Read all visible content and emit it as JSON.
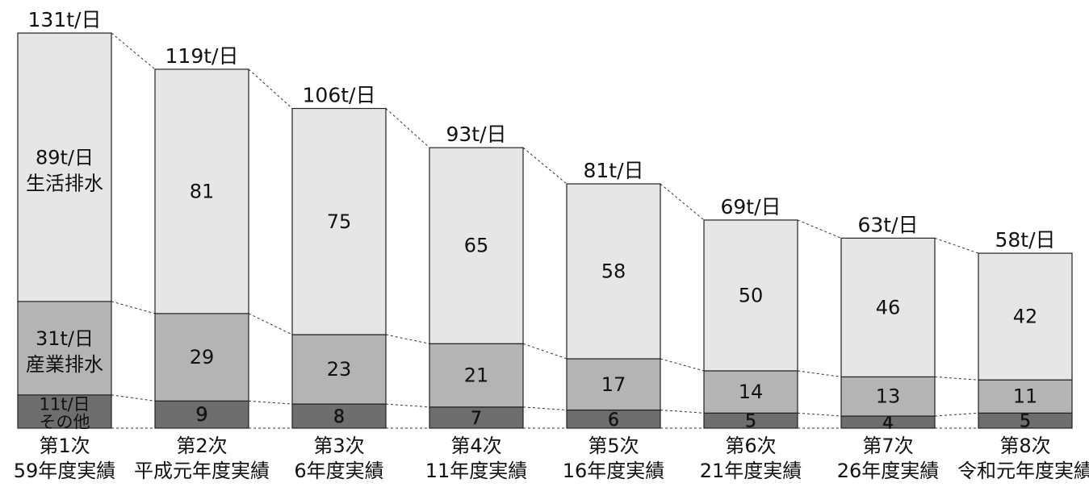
{
  "chart_data": {
    "type": "bar",
    "stacked": true,
    "categories": [
      "第1次",
      "第2次",
      "第3次",
      "第4次",
      "第5次",
      "第6次",
      "第7次",
      "第8次"
    ],
    "sublabels": [
      "59年度実績",
      "平成元年度実績",
      "6年度実績",
      "11年度実績",
      "16年度実績",
      "21年度実績",
      "26年度実績",
      "令和元年度実績"
    ],
    "totals": [
      131,
      119,
      106,
      93,
      81,
      69,
      63,
      58
    ],
    "total_labels": [
      "131t/日",
      "119t/日",
      "106t/日",
      "93t/日",
      "81t/日",
      "69t/日",
      "63t/日",
      "58t/日"
    ],
    "series": [
      {
        "name": "その他",
        "values": [
          11,
          9,
          8,
          7,
          6,
          5,
          4,
          5
        ],
        "labels": [
          "11t/日",
          "9",
          "8",
          "7",
          "6",
          "5",
          "4",
          "5"
        ],
        "color": "#6e6e6e"
      },
      {
        "name": "産業排水",
        "values": [
          31,
          29,
          23,
          21,
          17,
          14,
          13,
          11
        ],
        "labels": [
          "31t/日",
          "29",
          "23",
          "21",
          "17",
          "14",
          "13",
          "11"
        ],
        "color": "#b4b4b4"
      },
      {
        "name": "生活排水",
        "values": [
          89,
          81,
          75,
          65,
          58,
          50,
          46,
          42
        ],
        "labels": [
          "89t/日",
          "81",
          "75",
          "65",
          "58",
          "50",
          "46",
          "42"
        ],
        "color": "#e6e6e6"
      }
    ],
    "ylim": [
      0,
      131
    ],
    "grid": false,
    "connector_lines": "dotted",
    "text_color": "#111111",
    "border_color": "#222222"
  }
}
